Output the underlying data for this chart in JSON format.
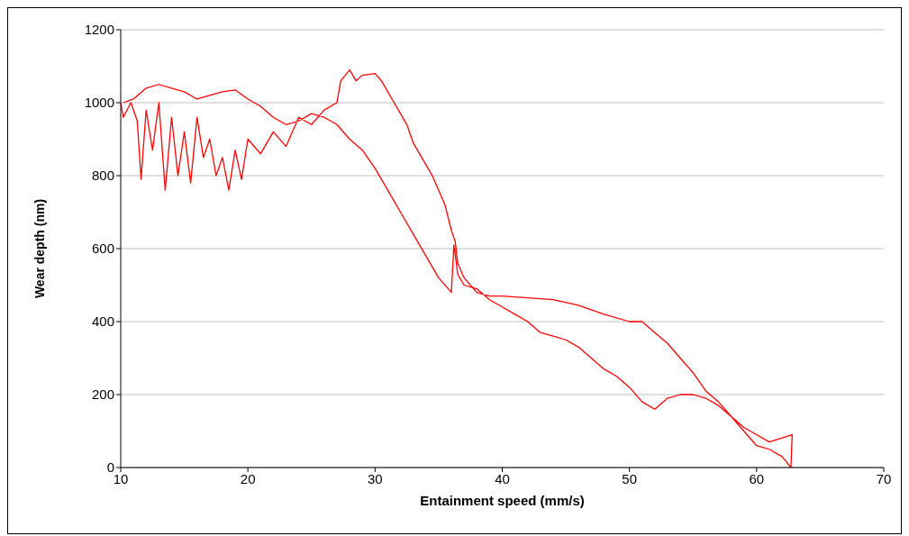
{
  "chart_data": {
    "type": "line",
    "xlabel": "Entainment speed (mm/s)",
    "ylabel": "Wear depth (nm)",
    "xlim": [
      10,
      70
    ],
    "xticks": [
      10,
      20,
      30,
      40,
      50,
      60,
      70
    ],
    "ylim": [
      0,
      1200
    ],
    "yticks": [
      0,
      200,
      400,
      600,
      800,
      1000,
      1200
    ],
    "grid": "y",
    "marker": "none",
    "line_style": "solid",
    "series": [
      {
        "color": "#ff0000",
        "x": [
          10,
          10.2,
          10.8,
          11.3,
          11.6,
          12,
          12.5,
          13,
          13.5,
          14,
          14.5,
          15,
          15.5,
          16,
          16.5,
          17,
          17.5,
          18,
          18.5,
          19,
          19.5,
          20,
          21,
          22,
          23,
          24,
          25,
          26,
          27,
          27.3,
          28,
          28.5,
          29,
          30,
          30.5,
          31,
          31.5,
          32,
          32.5,
          33,
          34,
          34.5,
          35,
          35.5,
          36,
          36.3,
          36.5,
          37,
          38,
          39,
          40,
          42,
          44,
          46,
          48,
          50,
          51,
          52,
          53,
          54,
          55,
          56,
          57,
          58,
          59,
          60,
          61,
          62,
          62.7,
          62.8,
          61,
          60,
          59,
          58,
          57,
          56,
          55,
          54,
          53,
          52,
          51,
          50,
          49,
          48,
          47,
          46,
          45,
          44,
          43,
          42,
          41,
          40,
          39,
          38,
          37,
          36.5,
          36.2,
          36,
          35,
          34,
          33,
          32,
          31,
          30,
          29,
          28,
          27,
          26,
          25,
          24,
          23,
          22,
          21,
          20,
          19,
          18,
          17,
          16,
          15,
          14,
          13,
          12,
          11,
          10.2
        ],
        "values": [
          1000,
          960,
          1000,
          950,
          790,
          980,
          870,
          1000,
          760,
          960,
          800,
          920,
          780,
          960,
          850,
          900,
          800,
          850,
          760,
          870,
          790,
          900,
          860,
          920,
          880,
          960,
          940,
          980,
          1000,
          1060,
          1090,
          1060,
          1075,
          1080,
          1060,
          1030,
          1000,
          970,
          940,
          890,
          830,
          800,
          760,
          720,
          650,
          620,
          560,
          520,
          480,
          470,
          470,
          465,
          460,
          445,
          420,
          400,
          400,
          370,
          340,
          300,
          260,
          210,
          180,
          140,
          100,
          60,
          50,
          30,
          0,
          90,
          70,
          90,
          110,
          140,
          170,
          190,
          200,
          200,
          190,
          160,
          180,
          220,
          250,
          270,
          300,
          330,
          350,
          360,
          370,
          400,
          420,
          440,
          460,
          490,
          500,
          530,
          610,
          480,
          520,
          580,
          640,
          700,
          760,
          820,
          870,
          900,
          940,
          960,
          970,
          950,
          940,
          960,
          990,
          1010,
          1035,
          1030,
          1020,
          1010,
          1030,
          1040,
          1050,
          1040,
          1010,
          1000
        ]
      }
    ]
  }
}
